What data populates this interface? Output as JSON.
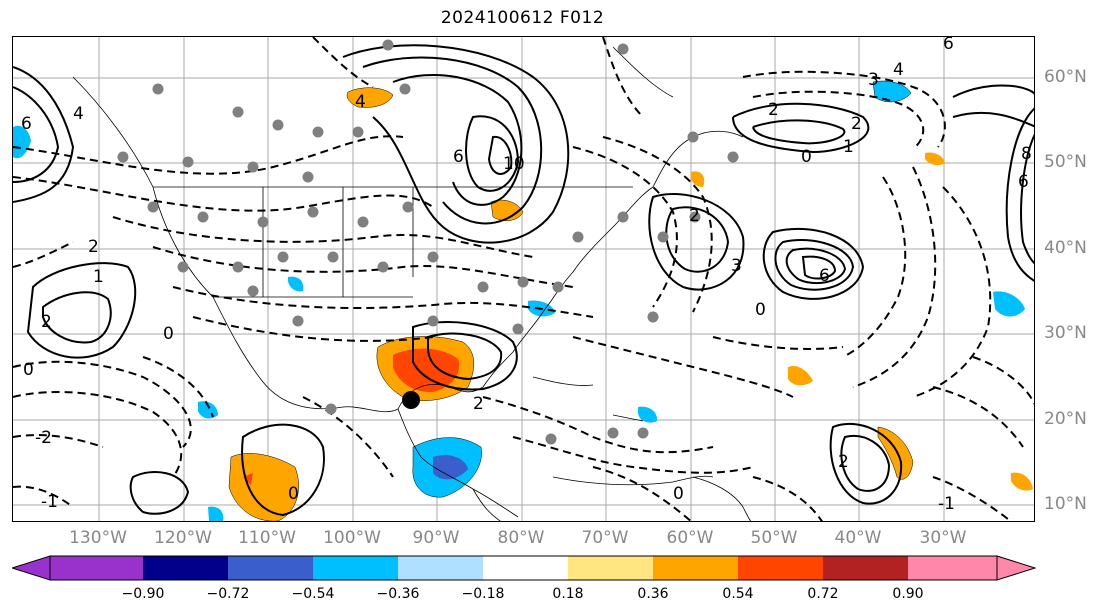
{
  "title": "2024100612 F012",
  "lon_labels": [
    "130°W",
    "120°W",
    "110°W",
    "100°W",
    "90°W",
    "80°W",
    "70°W",
    "60°W",
    "50°W",
    "40°W",
    "30°W"
  ],
  "lat_labels": [
    "60°N",
    "50°N",
    "40°N",
    "30°N",
    "20°N",
    "10°N"
  ],
  "colorbar": {
    "ticks": [
      "−0.90",
      "−0.72",
      "−0.54",
      "−0.36",
      "−0.18",
      "0.18",
      "0.36",
      "0.54",
      "0.72",
      "0.90"
    ],
    "colors": [
      "#9932cc",
      "#00008b",
      "#3a5fcd",
      "#00bfff",
      "#b0e0ff",
      "#ffffff",
      "#ffe680",
      "#ffa500",
      "#ff4500",
      "#b22222",
      "#ff88aa",
      "#ff88aa"
    ]
  },
  "contour_labels": [
    {
      "text": "6"
    },
    {
      "text": "4"
    },
    {
      "text": "2"
    },
    {
      "text": "10"
    },
    {
      "text": "6"
    },
    {
      "text": "2"
    },
    {
      "text": "0"
    },
    {
      "text": "1"
    },
    {
      "text": "3"
    },
    {
      "text": "4"
    },
    {
      "text": "6"
    },
    {
      "text": "2"
    },
    {
      "text": "0"
    },
    {
      "text": "1"
    },
    {
      "text": "2"
    },
    {
      "text": "0"
    },
    {
      "text": "-2"
    },
    {
      "text": "-1"
    },
    {
      "text": "2"
    },
    {
      "text": "0"
    },
    {
      "text": "6"
    },
    {
      "text": "3"
    },
    {
      "text": "2"
    },
    {
      "text": "0"
    },
    {
      "text": "8"
    },
    {
      "text": "2"
    },
    {
      "text": "-1"
    },
    {
      "text": "0"
    },
    {
      "text": "6"
    },
    {
      "text": "4"
    }
  ],
  "marker": {
    "color": "#000000"
  },
  "station_dot_color": "#808080"
}
